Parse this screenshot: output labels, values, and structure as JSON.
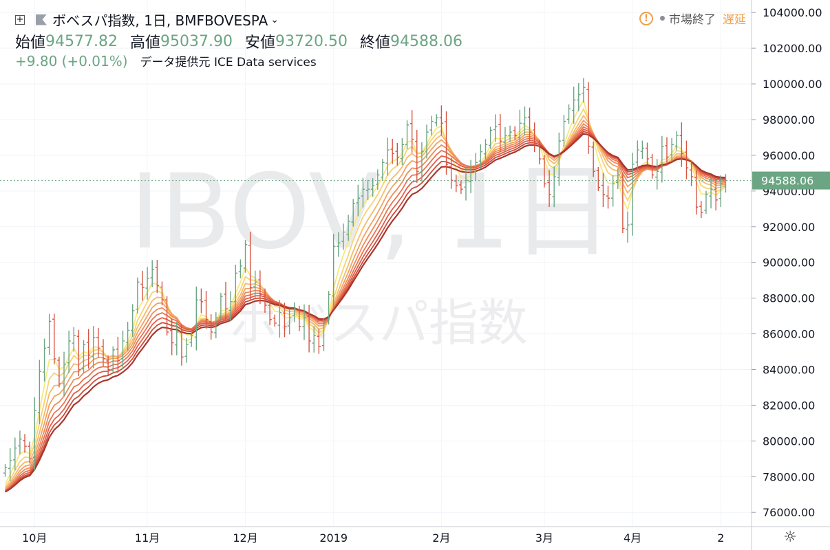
{
  "legend": {
    "symbol": "ボベスパ指数, 1日, BMFBOVESPA",
    "open_label": "始値",
    "open": "94577.82",
    "high_label": "高値",
    "high": "95037.90",
    "low_label": "安値",
    "low": "93720.50",
    "close_label": "終値",
    "close": "94588.06",
    "change": "+9.80 (+0.01%)",
    "provider": "データ提供元 ICE Data services"
  },
  "status": {
    "market": "市場終了",
    "delay": "遅延"
  },
  "watermark": {
    "line1": "IBOV, 1日",
    "line2": "ボベスパ指数"
  },
  "colors": {
    "up": "#6ba583",
    "down": "#d75442",
    "ribbon": [
      "#f9e87c",
      "#f8d273",
      "#f5ba6b",
      "#f2a262",
      "#ee8b5a",
      "#e87452",
      "#e05e4a",
      "#cc4a3a",
      "#a8362a"
    ]
  },
  "chart_data": {
    "type": "line",
    "x_unit": "trading days, 2018-09-24 to 2019-04-25",
    "x_ticks": [
      {
        "label": "10月",
        "day": 6
      },
      {
        "label": "11月",
        "day": 29
      },
      {
        "label": "12月",
        "day": 49
      },
      {
        "label": "2019",
        "day": 67
      },
      {
        "label": "2月",
        "day": 89
      },
      {
        "label": "3月",
        "day": 110
      },
      {
        "label": "4月",
        "day": 128
      },
      {
        "label": "2",
        "day": 146
      }
    ],
    "ylim": [
      75200,
      104700
    ],
    "y_ticks": [
      76000,
      78000,
      80000,
      82000,
      84000,
      86000,
      88000,
      90000,
      92000,
      94000,
      96000,
      98000,
      100000,
      102000,
      104000
    ],
    "last_price": 94588.06,
    "last_price_label": "94588.06",
    "close": [
      78500,
      78900,
      79600,
      80100,
      79700,
      79000,
      81700,
      83900,
      85200,
      86700,
      84600,
      83200,
      84300,
      85600,
      85900,
      84000,
      85400,
      84800,
      85800,
      85200,
      84600,
      84000,
      85100,
      84500,
      85600,
      86200,
      87300,
      88900,
      88600,
      89100,
      89600,
      88700,
      87900,
      86100,
      85500,
      86100,
      84700,
      85400,
      85900,
      87900,
      87800,
      86800,
      86100,
      86900,
      88100,
      87400,
      87800,
      89400,
      89800,
      91000,
      88600,
      88900,
      88200,
      87600,
      86800,
      86600,
      87200,
      86400,
      86900,
      87400,
      86400,
      86900,
      85600,
      85900,
      85300,
      86600,
      88200,
      90900,
      91100,
      91700,
      92300,
      93300,
      93600,
      94100,
      94100,
      94300,
      94900,
      95600,
      96300,
      96100,
      95900,
      96600,
      97700,
      96900,
      95100,
      96200,
      97300,
      97900,
      98100,
      97800,
      95500,
      94600,
      94300,
      94100,
      94600,
      95100,
      95600,
      96200,
      96600,
      97400,
      97600,
      96800,
      97100,
      97300,
      97100,
      97800,
      98100,
      97300,
      96600,
      95800,
      94400,
      93800,
      94800,
      96800,
      97900,
      98600,
      99100,
      99400,
      99800,
      96500,
      95100,
      94200,
      93800,
      93600,
      94400,
      94900,
      91900,
      92100,
      95500,
      96300,
      96400,
      95800,
      94900,
      95100,
      96500,
      95900,
      96600,
      97100,
      96100,
      95300,
      94800,
      93100,
      92800,
      93800,
      94100,
      93500,
      94400,
      94588
    ],
    "ribbon_periods": [
      4,
      6,
      8,
      10,
      12,
      14,
      16,
      18,
      20
    ]
  }
}
